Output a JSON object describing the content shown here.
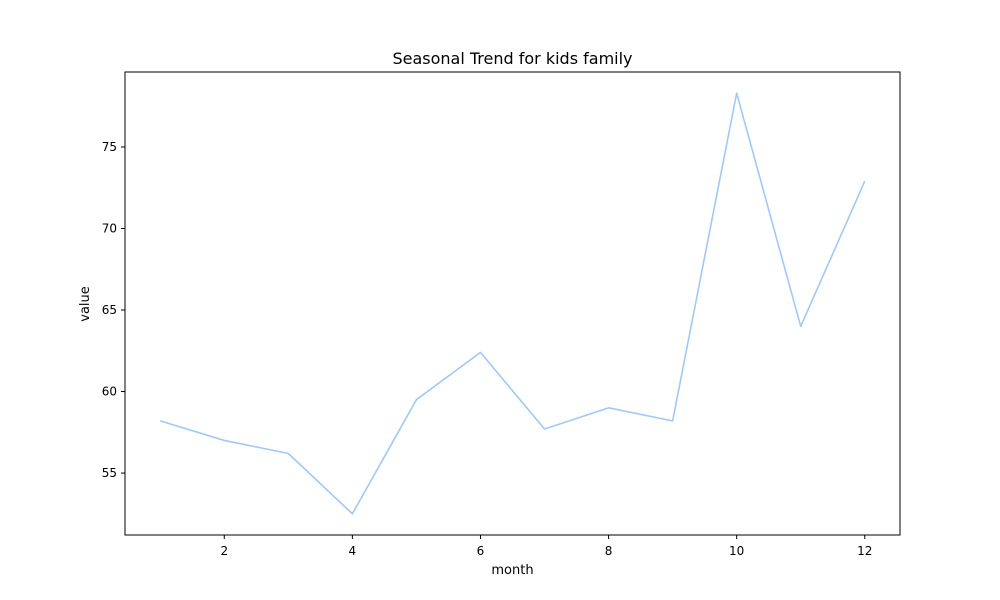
{
  "chart_data": {
    "type": "line",
    "title": "Seasonal Trend for kids  family",
    "xlabel": "month",
    "ylabel": "value",
    "xlim": [
      0.45,
      12.55
    ],
    "ylim": [
      51.2,
      79.6
    ],
    "xticks": [
      2,
      4,
      6,
      8,
      10,
      12
    ],
    "yticks": [
      55,
      60,
      65,
      70,
      75
    ],
    "grid": false,
    "series": [
      {
        "color": "#a1c9f4",
        "x": [
          1,
          2,
          3,
          4,
          5,
          6,
          7,
          8,
          9,
          10,
          11,
          12
        ],
        "y": [
          58.2,
          57.0,
          56.2,
          52.5,
          59.5,
          62.4,
          57.7,
          59.0,
          58.2,
          78.3,
          64.0,
          72.9
        ]
      }
    ]
  }
}
